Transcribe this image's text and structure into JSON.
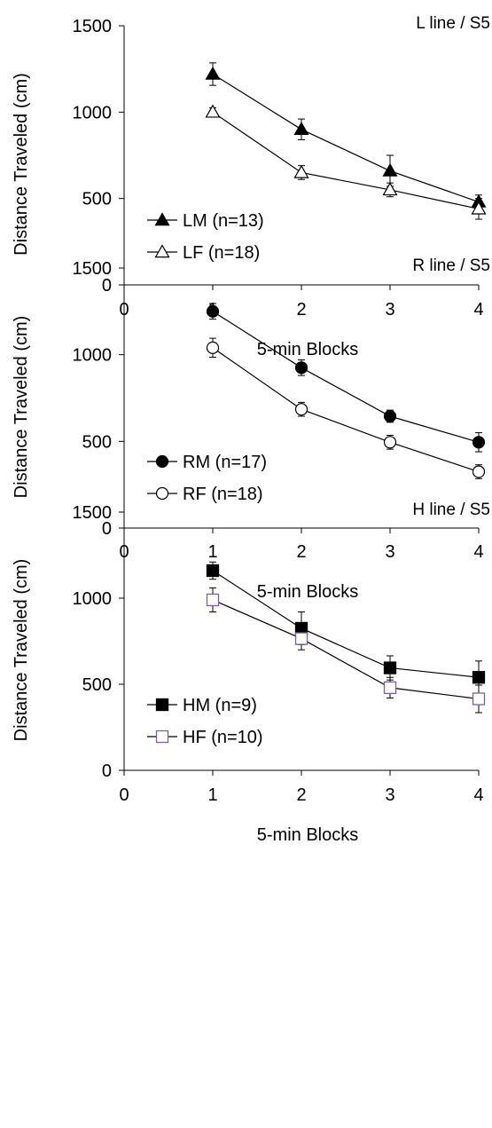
{
  "chart_data": [
    {
      "type": "line",
      "title": "L line / S5",
      "xlabel": "5-min Blocks",
      "ylabel": "Distance Traveled (cm)",
      "xlim": [
        0,
        4
      ],
      "ylim": [
        0,
        1500
      ],
      "x_ticks": [
        0,
        1,
        2,
        3,
        4
      ],
      "y_ticks": [
        0,
        500,
        1000,
        1500
      ],
      "grid": false,
      "legend_position": "bottom-left",
      "series": [
        {
          "name": "LM (n=13)",
          "marker": "triangle-filled",
          "x": [
            1,
            2,
            3,
            4
          ],
          "y": [
            1220,
            900,
            660,
            480
          ],
          "err": [
            65,
            60,
            90,
            40
          ]
        },
        {
          "name": "LF (n=18)",
          "marker": "triangle-open",
          "x": [
            1,
            2,
            3,
            4
          ],
          "y": [
            1000,
            650,
            550,
            440
          ],
          "err": [
            25,
            40,
            40,
            60
          ]
        }
      ]
    },
    {
      "type": "line",
      "title": "R line / S5",
      "xlabel": "5-min Blocks",
      "ylabel": "Distance Traveled (cm)",
      "xlim": [
        0,
        4
      ],
      "ylim": [
        0,
        1500
      ],
      "x_ticks": [
        0,
        1,
        2,
        3,
        4
      ],
      "y_ticks": [
        0,
        500,
        1000,
        1500
      ],
      "grid": false,
      "legend_position": "bottom-left",
      "series": [
        {
          "name": "RM (n=17)",
          "marker": "circle-filled",
          "x": [
            1,
            2,
            3,
            4
          ],
          "y": [
            1250,
            925,
            645,
            495
          ],
          "err": [
            45,
            45,
            35,
            55
          ]
        },
        {
          "name": "RF (n=18)",
          "marker": "circle-open",
          "x": [
            1,
            2,
            3,
            4
          ],
          "y": [
            1040,
            685,
            495,
            325
          ],
          "err": [
            55,
            40,
            40,
            40
          ]
        }
      ]
    },
    {
      "type": "line",
      "title": "H line / S5",
      "xlabel": "5-min Blocks",
      "ylabel": "Distance Traveled (cm)",
      "xlim": [
        0,
        4
      ],
      "ylim": [
        0,
        1500
      ],
      "x_ticks": [
        0,
        1,
        2,
        3,
        4
      ],
      "y_ticks": [
        0,
        500,
        1000,
        1500
      ],
      "grid": false,
      "legend_position": "bottom-left",
      "series": [
        {
          "name": "HM (n=9)",
          "marker": "square-filled",
          "x": [
            1,
            2,
            3,
            4
          ],
          "y": [
            1160,
            825,
            595,
            540
          ],
          "err": [
            50,
            95,
            70,
            95
          ]
        },
        {
          "name": "HF (n=10)",
          "marker": "square-open",
          "x": [
            1,
            2,
            3,
            4
          ],
          "y": [
            990,
            765,
            480,
            415
          ],
          "err": [
            70,
            65,
            60,
            80
          ]
        }
      ]
    }
  ]
}
